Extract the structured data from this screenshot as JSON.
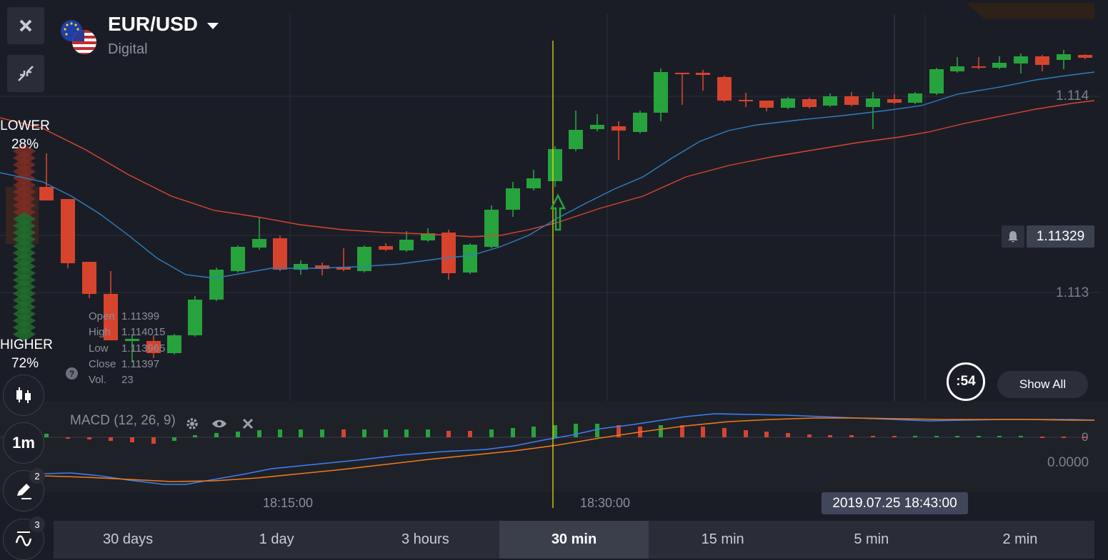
{
  "asset": {
    "name": "EUR/USD",
    "type": "Digital"
  },
  "sentiment": {
    "lower_label": "LOWER",
    "lower_pct": "28%",
    "higher_label": "HIGHER",
    "higher_pct": "72%"
  },
  "ohlc": {
    "open_label": "Open",
    "open": "1.11399",
    "high_label": "High",
    "high": "1.114015",
    "low_label": "Low",
    "low": "1.113965",
    "close_label": "Close",
    "close": "1.11397",
    "vol_label": "Vol.",
    "vol": "23"
  },
  "price_axis": {
    "level_top": "1.114",
    "level_bottom": "1.113",
    "current_price": "1.11329"
  },
  "macd": {
    "label": "MACD (12, 26, 9)",
    "zero_label": "0",
    "value_label": "0.0000"
  },
  "time_axis": {
    "t1": "18:15:00",
    "t2": "18:30:00",
    "cursor": "2019.07.25 18:43:00"
  },
  "timer": ":54",
  "show_all": "Show All",
  "left_toolbar": {
    "candles_mode": "candles-icon",
    "interval": "1m",
    "drawings_count": "2",
    "indicators_count": "3"
  },
  "timeframes": [
    "30 days",
    "1 day",
    "3 hours",
    "30 min",
    "15 min",
    "5 min",
    "2 min"
  ],
  "active_timeframe": "30 min",
  "colors": {
    "up": "#27a33d",
    "down": "#d6442e",
    "ema_fast": "#2f7fc1",
    "ema_slow": "#d9462e",
    "macd_line": "#3d7ff0",
    "signal_line": "#f07a17",
    "cursor": "#f2e60c"
  }
}
